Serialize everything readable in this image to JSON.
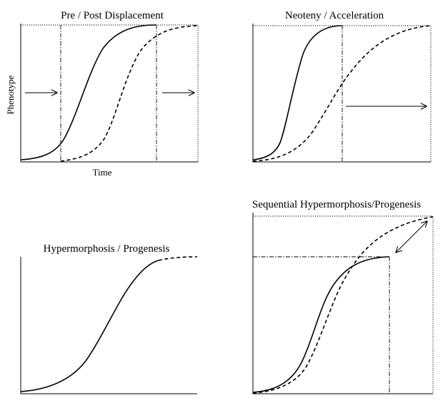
{
  "panels": {
    "p1": {
      "title": "Pre / Post Displacement",
      "ylabel": "Phenotype",
      "xlabel": "Time"
    },
    "p2": {
      "title": "Neoteny / Acceleration"
    },
    "p3": {
      "title": "Hypermorphosis / Progenesis"
    },
    "p4": {
      "title": "Sequential Hypermorphosis/Progenesis"
    }
  }
}
